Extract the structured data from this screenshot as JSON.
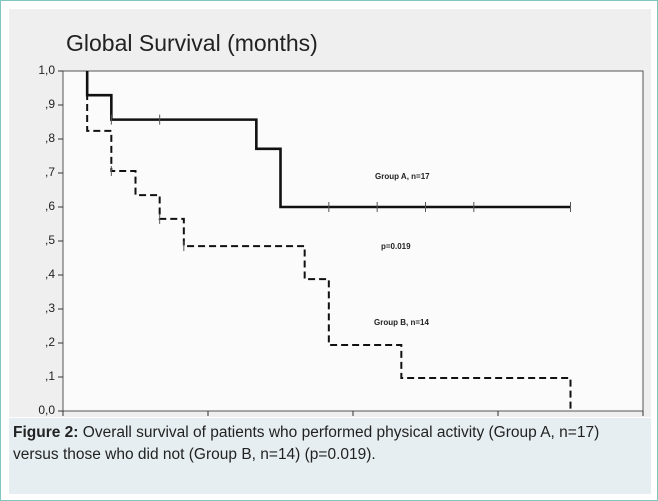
{
  "chart_data": {
    "type": "line",
    "title": "Global Survival (months)",
    "xlim": [
      0,
      24
    ],
    "xticks": [
      0,
      6,
      12,
      18,
      24
    ],
    "ylim": [
      0,
      1
    ],
    "yticks": [
      {
        "value": 0,
        "label": "0,0"
      },
      {
        "value": 0.1,
        "label": ",1"
      },
      {
        "value": 0.2,
        "label": ",2"
      },
      {
        "value": 0.3,
        "label": ",3"
      },
      {
        "value": 0.4,
        "label": ",4"
      },
      {
        "value": 0.5,
        "label": ",5"
      },
      {
        "value": 0.6,
        "label": ",6"
      },
      {
        "value": 0.7,
        "label": ",7"
      },
      {
        "value": 0.8,
        "label": ",8"
      },
      {
        "value": 0.9,
        "label": ",9"
      },
      {
        "value": 1,
        "label": "1,0"
      }
    ],
    "series": [
      {
        "name": "Group A, n=17",
        "color": "#111111",
        "dash": false,
        "x": [
          1,
          1,
          2,
          2,
          8,
          8,
          9,
          9,
          21
        ],
        "values": [
          1,
          0.929,
          0.929,
          0.857,
          0.857,
          0.771,
          0.771,
          0.6,
          0.6
        ],
        "censored_x": [
          2,
          4,
          11,
          13,
          15,
          17,
          21
        ],
        "censored_values": [
          0.857,
          0.857,
          0.6,
          0.6,
          0.6,
          0.6,
          0.6
        ]
      },
      {
        "name": "Group B, n=14",
        "color": "#111111",
        "dash": true,
        "x": [
          1,
          1,
          2,
          2,
          3,
          3,
          4,
          4,
          5,
          5,
          10,
          10,
          11,
          11,
          14,
          14,
          21,
          21
        ],
        "values": [
          1,
          0.824,
          0.824,
          0.706,
          0.706,
          0.635,
          0.635,
          0.565,
          0.565,
          0.485,
          0.485,
          0.388,
          0.388,
          0.194,
          0.194,
          0.097,
          0.097,
          0
        ],
        "censored_x": [
          2,
          4,
          5
        ],
        "censored_values": [
          0.706,
          0.565,
          0.485
        ]
      }
    ],
    "annotation": "p=0.019"
  },
  "caption": {
    "label": "Figure 2:",
    "text": "Overall survival of patients who performed physical activity (Group A, n=17) versus those who did not (Group B, n=14) (p=0.019)."
  }
}
